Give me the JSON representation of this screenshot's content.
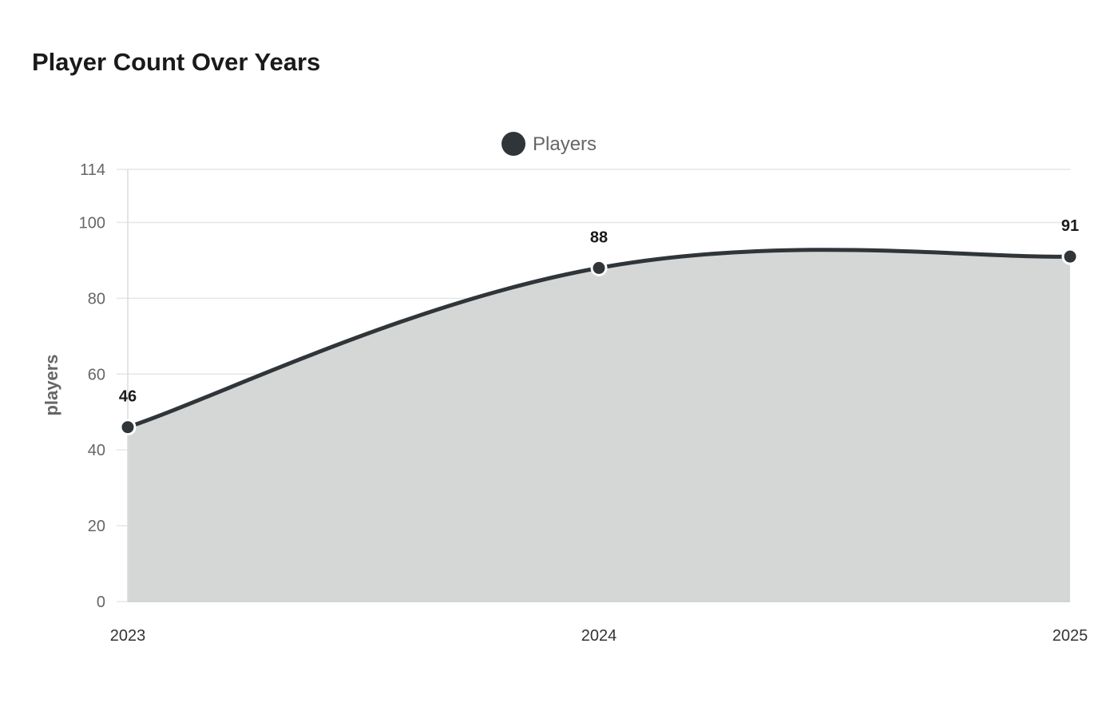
{
  "chart_data": {
    "type": "area",
    "title": "Player Count Over Years",
    "xlabel": "",
    "ylabel": "players",
    "categories": [
      "2023",
      "2024",
      "2025"
    ],
    "series": [
      {
        "name": "Players",
        "values": [
          46,
          88,
          91
        ]
      }
    ],
    "ylim": [
      0,
      114
    ],
    "yticks": [
      "0",
      "20",
      "40",
      "60",
      "80",
      "100",
      "114"
    ],
    "grid": true,
    "legend_position": "top-center",
    "colors": {
      "line": "#2f3538",
      "fill": "#d5d7d6",
      "grid": "#e6e6e6"
    }
  }
}
